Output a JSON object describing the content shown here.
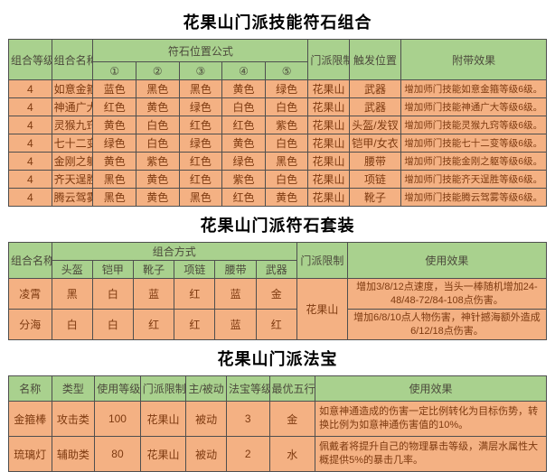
{
  "accent_colors": {
    "header_green": "#a9d18e",
    "cell_orange": "#f4b183",
    "title_black": "#000000"
  },
  "t1": {
    "title": "花果山门派技能符石组合",
    "h": {
      "level": "组合等级",
      "name": "组合名称",
      "formula": "符石位置公式",
      "p1": "①",
      "p2": "②",
      "p3": "③",
      "p4": "④",
      "p5": "⑤",
      "sect": "门派限制",
      "trigger": "触发位置",
      "effect": "附带效果"
    },
    "rows": [
      [
        "4",
        "如意金箍",
        "蓝色",
        "黑色",
        "黑色",
        "黄色",
        "绿色",
        "花果山",
        "武器",
        "增加师门技能如意金箍等级6级。"
      ],
      [
        "4",
        "神通广大",
        "红色",
        "黄色",
        "绿色",
        "白色",
        "白色",
        "花果山",
        "武器",
        "增加师门技能神通广大等级6级。"
      ],
      [
        "4",
        "灵猴九窍",
        "黄色",
        "白色",
        "红色",
        "红色",
        "紫色",
        "花果山",
        "头盔/发钗",
        "增加师门技能灵猴九窍等级6级。"
      ],
      [
        "4",
        "七十二变",
        "绿色",
        "白色",
        "绿色",
        "黄色",
        "白色",
        "花果山",
        "铠甲/女衣",
        "增加师门技能七十二变等级6级。"
      ],
      [
        "4",
        "金刚之躯",
        "黄色",
        "紫色",
        "红色",
        "绿色",
        "黑色",
        "花果山",
        "腰带",
        "增加师门技能金刚之躯等级6级。"
      ],
      [
        "4",
        "齐天逞胜",
        "黑色",
        "黄色",
        "红色",
        "紫色",
        "白色",
        "花果山",
        "项链",
        "增加师门技能齐天逞胜等级6级。"
      ],
      [
        "4",
        "腾云驾雾",
        "黑色",
        "黄色",
        "黑色",
        "红色",
        "黄色",
        "花果山",
        "靴子",
        "增加师门技能腾云驾雾等级6级。"
      ]
    ]
  },
  "t2": {
    "title": "花果山门派符石套装",
    "h": {
      "name": "组合名称",
      "mode": "组合方式",
      "s1": "头盔",
      "s2": "铠甲",
      "s3": "靴子",
      "s4": "项链",
      "s5": "腰带",
      "s6": "武器",
      "sect": "门派限制",
      "effect": "使用效果"
    },
    "rows": [
      [
        "凌霄",
        "黑",
        "白",
        "蓝",
        "红",
        "蓝",
        "金",
        {
          "t": "花果山",
          "rs": 2
        },
        "增加3/8/12点速度，当头一棒随机增加24-48/48-72/84-108点伤害。"
      ],
      [
        "分海",
        "白",
        "白",
        "红",
        "红",
        "蓝",
        "红",
        "增加6/8/10点人物伤害，神针撼海额外造成6/12/18点伤害。"
      ]
    ]
  },
  "t3": {
    "title": "花果山门派法宝",
    "h": {
      "name": "名称",
      "type": "类型",
      "level": "使用等级",
      "sect": "门派限制",
      "passive": "主/被动",
      "grade": "法宝等级",
      "element": "最优五行",
      "effect": "使用效果"
    },
    "rows": [
      [
        "金箍棒",
        "攻击类",
        "100",
        "花果山",
        "被动",
        "3",
        "金",
        "如意神通造成的伤害一定比例转化为目标伤势，转换比例为如意神通伤害值的10%。"
      ],
      [
        "琉璃灯",
        "辅助类",
        "80",
        "花果山",
        "被动",
        "2",
        "水",
        "佩戴者将提升自己的物理暴击等级，满层水属性大概提供5%的暴击几率。"
      ]
    ]
  }
}
